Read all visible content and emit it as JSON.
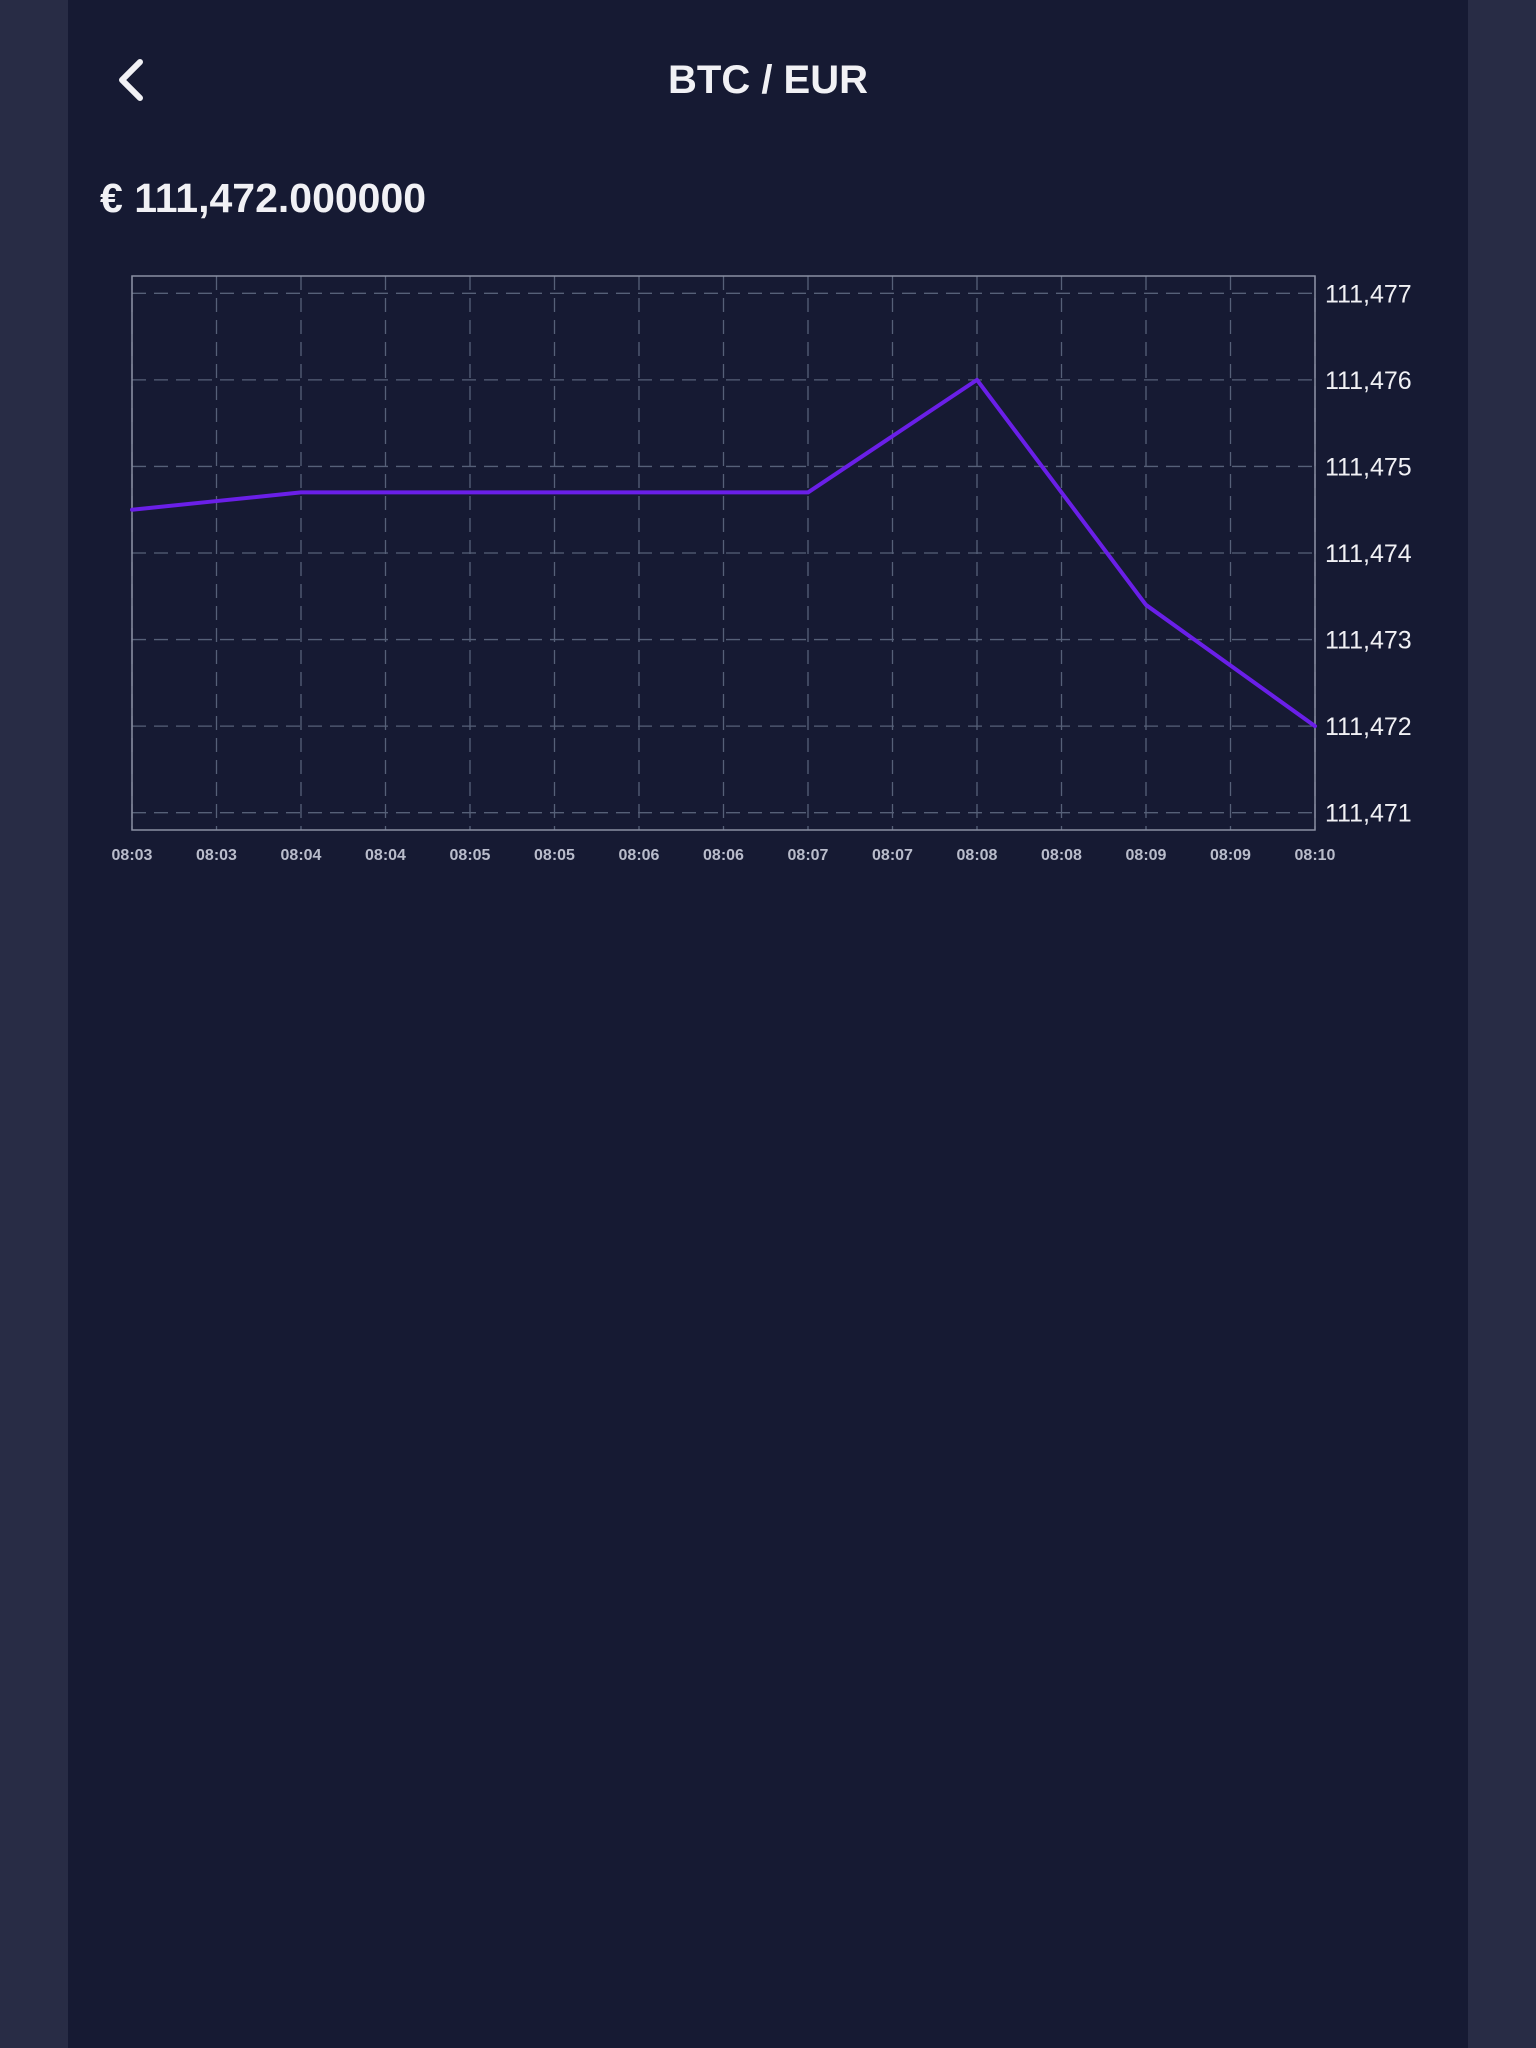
{
  "header": {
    "title": "BTC / EUR",
    "back_icon": "chevron-left-icon"
  },
  "price": {
    "display": "€ 111,472.000000"
  },
  "colors": {
    "background": "#161a33",
    "frame": "#282c45",
    "line": "#6a1fe8",
    "grid": "#566078",
    "text": "#f1f1f5"
  },
  "chart_data": {
    "type": "line",
    "categories": [
      "08:03",
      "08:03",
      "08:04",
      "08:04",
      "08:05",
      "08:05",
      "08:06",
      "08:06",
      "08:07",
      "08:07",
      "08:08",
      "08:08",
      "08:09",
      "08:09",
      "08:10"
    ],
    "series": [
      {
        "values": [
          111474.5,
          111474.6,
          111474.7,
          111474.7,
          111474.7,
          111474.7,
          111474.7,
          111474.7,
          111474.7,
          111475.35,
          111476.0,
          111474.7,
          111473.4,
          111472.7,
          111472.0
        ]
      }
    ],
    "y_ticks": [
      "111,477",
      "111,476",
      "111,475",
      "111,474",
      "111,473",
      "111,472",
      "111,471"
    ],
    "ylim": [
      111470.8,
      111477.2
    ],
    "y_axis_side": "right",
    "grid": true,
    "grid_style": "dashed"
  }
}
